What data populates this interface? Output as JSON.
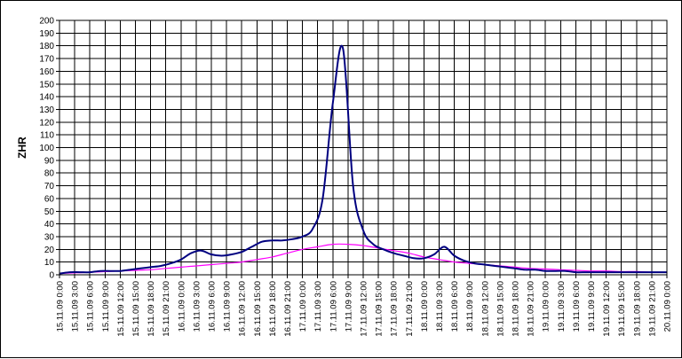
{
  "chart_data": {
    "type": "line",
    "title": "",
    "xlabel": "",
    "ylabel": "ZHR",
    "ylim": [
      0,
      200
    ],
    "ytick_step": 10,
    "grid": true,
    "legend": "none",
    "categories": [
      "15.11.09 0:00",
      "15.11.09 3:00",
      "15.11.09 6:00",
      "15.11.09 9:00",
      "15.11.09 12:00",
      "15.11.09 15:00",
      "15.11.09 18:00",
      "15.11.09 21:00",
      "16.11.09 0:00",
      "16.11.09 3:00",
      "16.11.09 6:00",
      "16.11.09 9:00",
      "16.11.09 12:00",
      "16.11.09 15:00",
      "16.11.09 18:00",
      "16.11.09 21:00",
      "17.11.09 0:00",
      "17.11.09 3:00",
      "17.11.09 6:00",
      "17.11.09 9:00",
      "17.11.09 12:00",
      "17.11.09 15:00",
      "17.11.09 18:00",
      "17.11.09 21:00",
      "18.11.09 0:00",
      "18.11.09 3:00",
      "18.11.09 6:00",
      "18.11.09 9:00",
      "18.11.09 12:00",
      "18.11.09 15:00",
      "18.11.09 18:00",
      "18.11.09 21:00",
      "19.11.09 0:00",
      "19.11.09 3:00",
      "19.11.09 6:00",
      "19.11.09 9:00",
      "19.11.09 12:00",
      "19.11.09 15:00",
      "19.11.09 18:00",
      "19.11.09 21:00",
      "20.11.09 0:00"
    ],
    "series": [
      {
        "color": "#000080",
        "x": [
          0,
          2,
          4,
          6,
          8,
          10,
          12,
          14,
          16,
          18,
          20,
          22,
          24,
          26,
          28,
          30,
          32,
          34,
          36,
          38,
          40,
          42,
          44,
          46,
          48,
          50,
          52,
          54,
          56,
          58,
          60,
          62,
          64,
          66,
          68,
          70,
          72,
          74,
          76,
          78,
          80,
          82,
          84,
          86,
          88,
          90,
          92,
          94,
          96,
          98,
          100,
          102,
          104,
          106,
          108,
          110,
          112,
          114,
          116,
          118,
          120
        ],
        "values": [
          1,
          2,
          2,
          2,
          3,
          3,
          3,
          4,
          5,
          6,
          7,
          9,
          12,
          17,
          19,
          16,
          15,
          16,
          18,
          22,
          26,
          27,
          27,
          28,
          30,
          36,
          60,
          135,
          178,
          70,
          35,
          24,
          20,
          17,
          15,
          13,
          13,
          16,
          22,
          15,
          11,
          9,
          8,
          7,
          6,
          5,
          4,
          4,
          3,
          3,
          3,
          2,
          2,
          2,
          2,
          2,
          2,
          2,
          2,
          2,
          2
        ]
      },
      {
        "color": "#ff00ff",
        "x": [
          0,
          3,
          6,
          9,
          12,
          15,
          18,
          21,
          24,
          27,
          30,
          33,
          36,
          39,
          42,
          45,
          48,
          51,
          54,
          57,
          60,
          63,
          66,
          69,
          72,
          75,
          78,
          81,
          84,
          87,
          90,
          93,
          96,
          99,
          102,
          105,
          108,
          111,
          114,
          117,
          120
        ],
        "values": [
          1,
          1.5,
          2,
          2.5,
          3,
          3.5,
          4,
          5,
          6,
          7,
          8,
          9,
          10,
          12,
          14,
          17,
          20,
          22,
          24,
          24,
          23,
          21,
          19,
          17,
          14,
          12,
          10,
          9,
          8,
          7,
          6,
          5,
          4.5,
          4,
          3.5,
          3,
          3,
          2.5,
          2.5,
          2,
          2
        ]
      }
    ]
  }
}
